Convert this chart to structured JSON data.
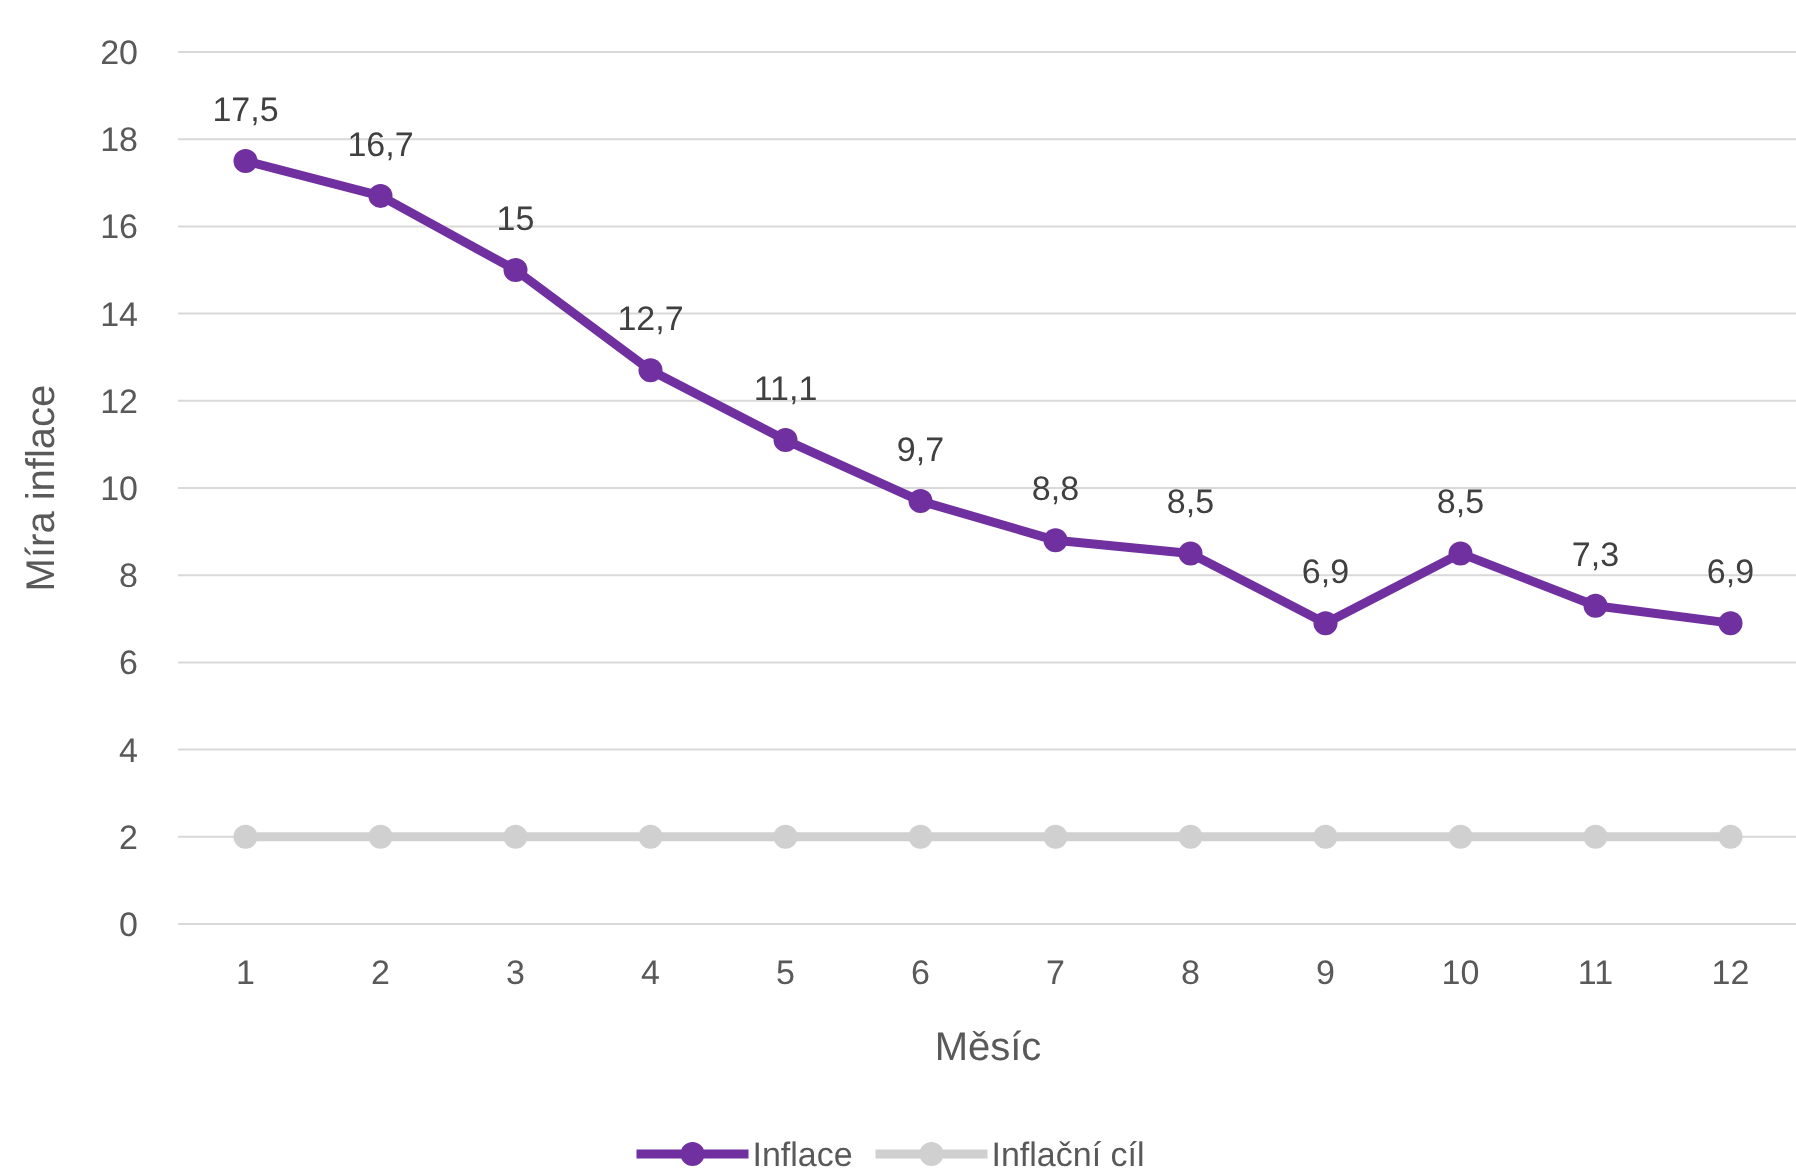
{
  "chart_data": {
    "type": "line",
    "xlabel": "Měsíc",
    "ylabel": "Míra inflace",
    "categories": [
      "1",
      "2",
      "3",
      "4",
      "5",
      "6",
      "7",
      "8",
      "9",
      "10",
      "11",
      "12"
    ],
    "series": [
      {
        "name": "Inflace",
        "color": "#7030a0",
        "values": [
          17.5,
          16.7,
          15,
          12.7,
          11.1,
          9.7,
          8.8,
          8.5,
          6.9,
          8.5,
          7.3,
          6.9
        ],
        "value_labels": [
          "17,5",
          "16,7",
          "15",
          "12,7",
          "11,1",
          "9,7",
          "8,8",
          "8,5",
          "6,9",
          "8,5",
          "7,3",
          "6,9"
        ]
      },
      {
        "name": "Inflační cíl",
        "color": "#d0d0d0",
        "values": [
          2,
          2,
          2,
          2,
          2,
          2,
          2,
          2,
          2,
          2,
          2,
          2
        ]
      }
    ],
    "ylim": [
      0,
      20
    ],
    "yticks": [
      0,
      2,
      4,
      6,
      8,
      10,
      12,
      14,
      16,
      18,
      20
    ],
    "grid": "y",
    "legend": "bottom",
    "marker": "circle",
    "line_style": "solid"
  }
}
